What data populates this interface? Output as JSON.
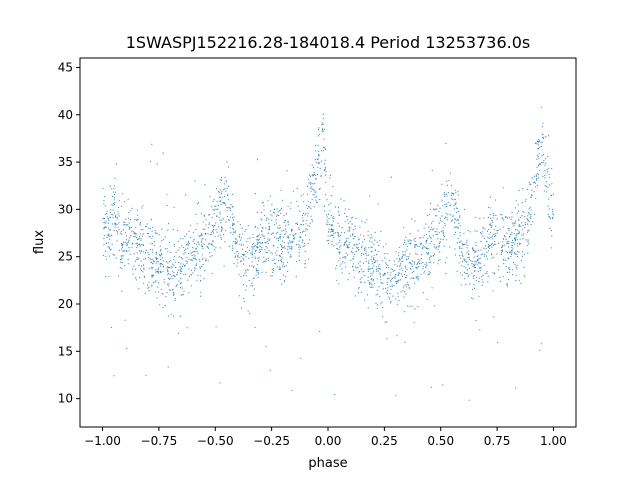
{
  "chart_data": {
    "type": "scatter",
    "title": "1SWASPJ152216.28-184018.4 Period 13253736.0s",
    "xlabel": "phase",
    "ylabel": "flux",
    "xlim": [
      -1.1,
      1.1
    ],
    "ylim": [
      7,
      46
    ],
    "x_ticks": [
      -1.0,
      -0.75,
      -0.5,
      -0.25,
      0.0,
      0.25,
      0.5,
      0.75,
      1.0
    ],
    "x_tick_labels": [
      "−1.00",
      "−0.75",
      "−0.50",
      "−0.25",
      "0.00",
      "0.25",
      "0.50",
      "0.75",
      "1.00"
    ],
    "y_ticks": [
      10,
      15,
      20,
      25,
      30,
      35,
      40,
      45
    ],
    "y_tick_labels": [
      "10",
      "15",
      "20",
      "25",
      "30",
      "35",
      "40",
      "45"
    ],
    "grid": false,
    "marker_color": "#1f77b4",
    "series": [
      {
        "phase": [
          -1.0,
          -0.97,
          -0.95,
          -0.92,
          -0.88,
          -0.85,
          -0.8,
          -0.75,
          -0.7,
          -0.65,
          -0.6,
          -0.55,
          -0.5,
          -0.47,
          -0.45,
          -0.4,
          -0.35,
          -0.3,
          -0.25,
          -0.2,
          -0.15,
          -0.1,
          -0.05,
          -0.02,
          0.0,
          0.03,
          0.05,
          0.1,
          0.15,
          0.2,
          0.25,
          0.3,
          0.35,
          0.4,
          0.45,
          0.5,
          0.53,
          0.55,
          0.6,
          0.65,
          0.7,
          0.75,
          0.8,
          0.85,
          0.88,
          0.92,
          0.95,
          0.97,
          1.0
        ],
        "flux": [
          29,
          27,
          30,
          27,
          27,
          26,
          25,
          24,
          23,
          24,
          25,
          26,
          28,
          30,
          31,
          25,
          24,
          26,
          27,
          26,
          27,
          28,
          34,
          37,
          29,
          28,
          27,
          26,
          25,
          24,
          23,
          23,
          24,
          25,
          26,
          28,
          30,
          31,
          25,
          24,
          26,
          27,
          26,
          27,
          28,
          34,
          37,
          33,
          29
        ]
      }
    ]
  }
}
